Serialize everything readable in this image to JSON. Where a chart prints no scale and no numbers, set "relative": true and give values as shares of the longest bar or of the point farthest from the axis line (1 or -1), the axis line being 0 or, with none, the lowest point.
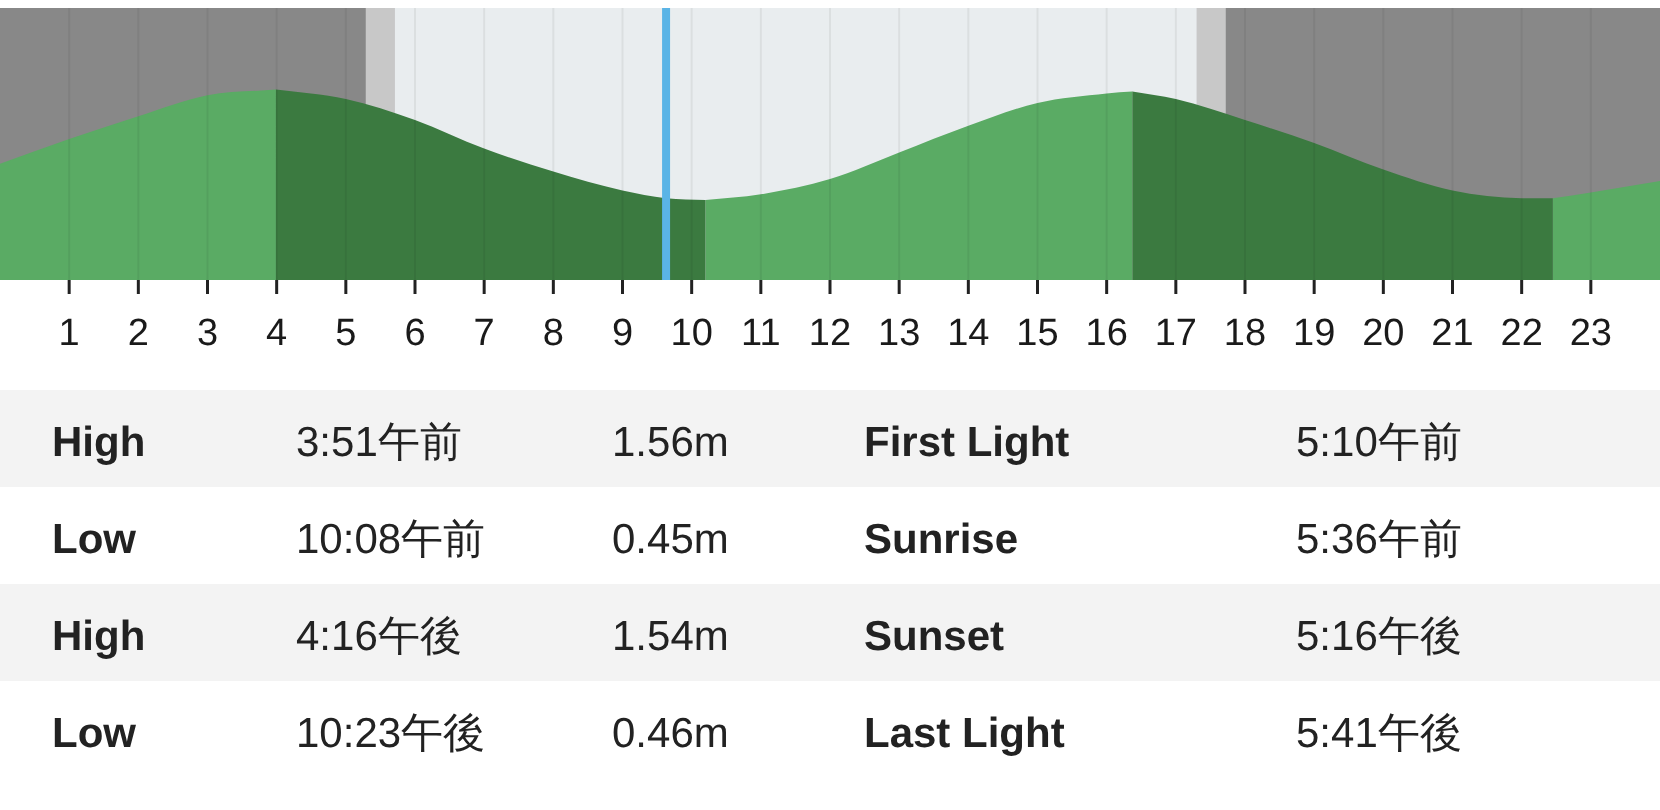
{
  "chart_data": [
    {
      "type": "area",
      "relative": true,
      "xlim": [
        0,
        24
      ],
      "xticks": [
        1,
        2,
        3,
        4,
        5,
        6,
        7,
        8,
        9,
        10,
        11,
        12,
        13,
        14,
        15,
        16,
        17,
        18,
        19,
        20,
        21,
        22,
        23
      ],
      "grid": "x",
      "tick_labels": "x",
      "x": [
        0,
        1,
        2,
        3,
        3.99,
        5,
        6,
        7,
        8,
        9,
        9.63,
        10.2,
        11,
        12,
        13,
        14,
        15,
        16,
        16.37,
        17,
        18,
        19,
        20,
        21,
        22,
        22.45,
        23,
        24
      ],
      "series": [
        {
          "color": "#5aab64",
          "values": [
            0.61,
            0.74,
            0.86,
            0.97,
            1,
            null,
            null,
            null,
            null,
            null,
            null,
            0.42,
            0.45,
            0.53,
            0.67,
            0.81,
            0.93,
            0.98,
            0.99,
            null,
            null,
            null,
            null,
            null,
            null,
            0.43,
            0.46,
            0.52
          ]
        },
        {
          "color": "#3b7a40",
          "values": [
            null,
            null,
            null,
            null,
            1,
            0.95,
            0.84,
            0.69,
            0.57,
            0.47,
            0.43,
            0.42,
            null,
            null,
            null,
            null,
            null,
            null,
            0.99,
            0.95,
            0.84,
            0.72,
            0.58,
            0.47,
            0.43,
            0.43,
            null,
            null
          ]
        }
      ],
      "bands": [
        {
          "axis": "x",
          "from": 0,
          "to": 5.29,
          "color": "#888888"
        },
        {
          "axis": "x",
          "from": 5.29,
          "to": 5.71,
          "color": "#c8c8c8"
        },
        {
          "axis": "x",
          "from": 17.3,
          "to": 17.72,
          "color": "#c8c8c8"
        },
        {
          "axis": "x",
          "from": 17.72,
          "to": 24,
          "color": "#888888"
        }
      ],
      "ref_lines": [
        {
          "axis": "x",
          "value": 9.63,
          "color": "#5ab4e6"
        }
      ]
    },
    {
      "type": "other",
      "annotations": [
        "High",
        "3:51午前",
        "1.56m",
        "First Light",
        "5:10午前",
        "Low",
        "10:08午前",
        "0.45m",
        "Sunrise",
        "5:36午前",
        "High",
        "4:16午後",
        "1.54m",
        "Sunset",
        "5:16午後",
        "Low",
        "10:23午後",
        "0.46m",
        "Last Light",
        "5:41午後"
      ]
    }
  ]
}
